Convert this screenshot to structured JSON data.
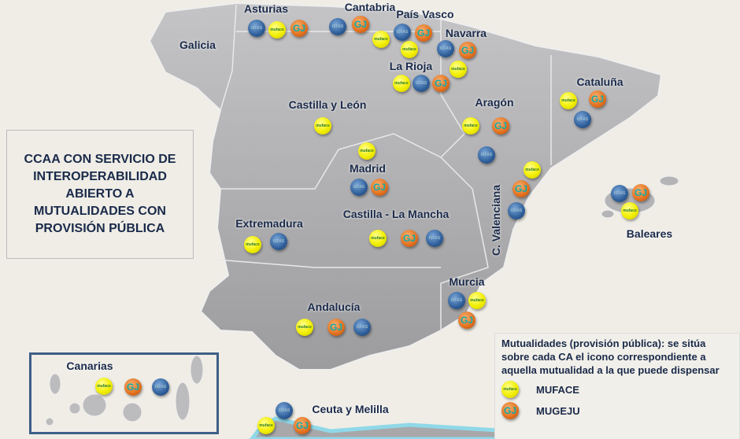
{
  "title": "CCAA CON SERVICIO DE INTEROPERABILIDAD ABIERTO A MUTUALIDADES CON PROVISIÓN PÚBLICA",
  "title_lines": [
    "CCAA CON SERVICIO DE",
    "INTEROPERABILIDAD",
    "ABIERTO A",
    "MUTUALIDADES CON",
    "PROVISIÓN PÚBLICA"
  ],
  "icon_text": {
    "muface": "muface",
    "mugeju": "GJ",
    "isfas": "ISFAS"
  },
  "colors": {
    "muface": "#f2ee00",
    "mugeju": "#e2701e",
    "isfas": "#2f5f9a",
    "land": "#a9a9ab",
    "sea": "#efede6",
    "text": "#1a2a4a"
  },
  "regions": [
    {
      "name": "Galicia",
      "icons": []
    },
    {
      "name": "Asturias",
      "icons": [
        "isfas",
        "muface",
        "mugeju"
      ]
    },
    {
      "name": "Cantabria",
      "icons": [
        "isfas",
        "mugeju",
        "muface"
      ]
    },
    {
      "name": "País Vasco",
      "icons": [
        "isfas",
        "mugeju",
        "muface"
      ]
    },
    {
      "name": "Navarra",
      "icons": [
        "isfas",
        "mugeju",
        "muface"
      ]
    },
    {
      "name": "La Rioja",
      "icons": [
        "muface",
        "isfas",
        "mugeju"
      ]
    },
    {
      "name": "Castilla y León",
      "icons": [
        "muface"
      ]
    },
    {
      "name": "Aragón",
      "icons": [
        "muface",
        "mugeju",
        "isfas"
      ]
    },
    {
      "name": "Cataluña",
      "icons": [
        "muface",
        "mugeju",
        "isfas"
      ]
    },
    {
      "name": "Madrid",
      "icons": [
        "muface",
        "isfas",
        "mugeju"
      ]
    },
    {
      "name": "C. Valenciana",
      "icons": [
        "muface",
        "mugeju",
        "isfas"
      ]
    },
    {
      "name": "Baleares",
      "icons": [
        "isfas",
        "mugeju",
        "muface"
      ]
    },
    {
      "name": "Castilla - La Mancha",
      "icons": [
        "muface",
        "mugeju",
        "isfas"
      ]
    },
    {
      "name": "Extremadura",
      "icons": [
        "muface",
        "isfas"
      ]
    },
    {
      "name": "Murcia",
      "icons": [
        "isfas",
        "muface",
        "mugeju"
      ]
    },
    {
      "name": "Andalucía",
      "icons": [
        "muface",
        "mugeju",
        "isfas"
      ]
    },
    {
      "name": "Canarias",
      "icons": [
        "muface",
        "mugeju",
        "isfas"
      ]
    },
    {
      "name": "Ceuta y Melilla",
      "icons": [
        "isfas",
        "muface",
        "mugeju"
      ]
    }
  ],
  "legend": {
    "description": "Mutualidades (provisión pública): se sitúa sobre cada CA el icono correspondiente a aquella mutualidad a la que puede dispensar",
    "items": [
      {
        "icon": "muface",
        "label": "MUFACE"
      },
      {
        "icon": "mugeju",
        "label": "MUGEJU"
      }
    ]
  }
}
